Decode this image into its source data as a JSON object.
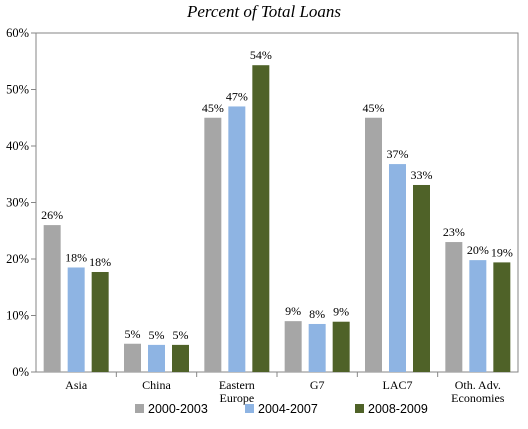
{
  "chart_data": {
    "type": "bar",
    "title": "Percent of Total Loans",
    "xlabel": "",
    "ylabel": "",
    "ylim": [
      0,
      60
    ],
    "yticks": [
      "0%",
      "10%",
      "20%",
      "30%",
      "40%",
      "50%",
      "60%"
    ],
    "grid": false,
    "legend": "bottom",
    "categories": [
      [
        "Asia"
      ],
      [
        "China"
      ],
      [
        "Eastern",
        "Europe"
      ],
      [
        "G7"
      ],
      [
        "LAC7"
      ],
      [
        "Oth. Adv.",
        "Economies"
      ]
    ],
    "series": [
      {
        "name": "2000-2003",
        "color": "#a6a6a6",
        "values": [
          26,
          5,
          45,
          9,
          45,
          23
        ],
        "labels": [
          "26%",
          "5%",
          "45%",
          "9%",
          "45%",
          "23%"
        ]
      },
      {
        "name": "2004-2007",
        "color": "#8eb4e3",
        "values": [
          18.5,
          4.8,
          47,
          8.5,
          36.8,
          19.8
        ],
        "labels": [
          "18%",
          "5%",
          "47%",
          "8%",
          "37%",
          "20%"
        ]
      },
      {
        "name": "2008-2009",
        "color": "#4f6228",
        "values": [
          17.7,
          4.8,
          54.3,
          8.9,
          33.1,
          19.4
        ],
        "labels": [
          "18%",
          "5%",
          "54%",
          "9%",
          "33%",
          "19%"
        ]
      }
    ]
  }
}
